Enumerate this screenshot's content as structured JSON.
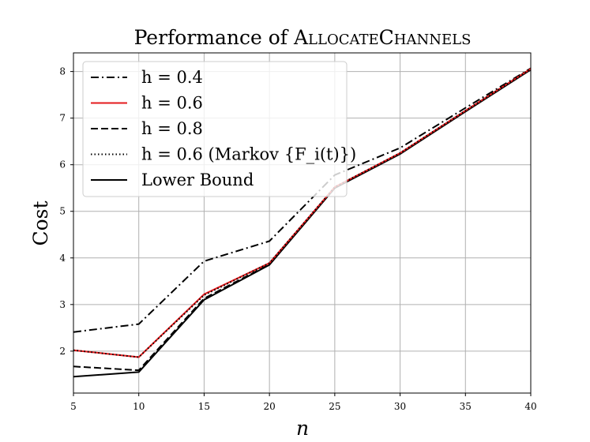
{
  "chart_data": {
    "type": "line",
    "title": "Performance of ALLOCATECHANNELS",
    "xlabel": "n",
    "ylabel": "Cost",
    "xlim": [
      5,
      40
    ],
    "ylim": [
      1.1,
      8.4
    ],
    "x_ticks": [
      5,
      10,
      15,
      20,
      25,
      30,
      35,
      40
    ],
    "y_ticks": [
      2,
      3,
      4,
      5,
      6,
      7,
      8
    ],
    "grid": true,
    "legend_position": "top-left",
    "x": [
      5,
      10,
      15,
      20,
      25,
      30,
      35,
      40
    ],
    "series": [
      {
        "name": "h = 0.4",
        "style": "dashdot",
        "color": "#000000",
        "values": [
          2.41,
          2.58,
          3.93,
          4.36,
          5.78,
          6.36,
          7.22,
          8.07
        ]
      },
      {
        "name": "h = 0.6",
        "style": "solid",
        "color": "#e41a1c",
        "values": [
          2.02,
          1.87,
          3.22,
          3.89,
          5.52,
          6.25,
          7.16,
          8.06
        ]
      },
      {
        "name": "h = 0.8",
        "style": "dashed",
        "color": "#000000",
        "values": [
          1.67,
          1.59,
          3.13,
          3.86,
          5.51,
          6.24,
          7.15,
          8.05
        ]
      },
      {
        "name": "h = 0.6 (Markov {F_i(t)})",
        "style": "dotted",
        "color": "#000000",
        "values": [
          2.02,
          1.87,
          3.2,
          3.89,
          5.52,
          6.25,
          7.16,
          8.06
        ]
      },
      {
        "name": "Lower Bound",
        "style": "solid",
        "color": "#000000",
        "values": [
          1.45,
          1.55,
          3.1,
          3.85,
          5.5,
          6.23,
          7.14,
          8.04
        ]
      }
    ]
  }
}
